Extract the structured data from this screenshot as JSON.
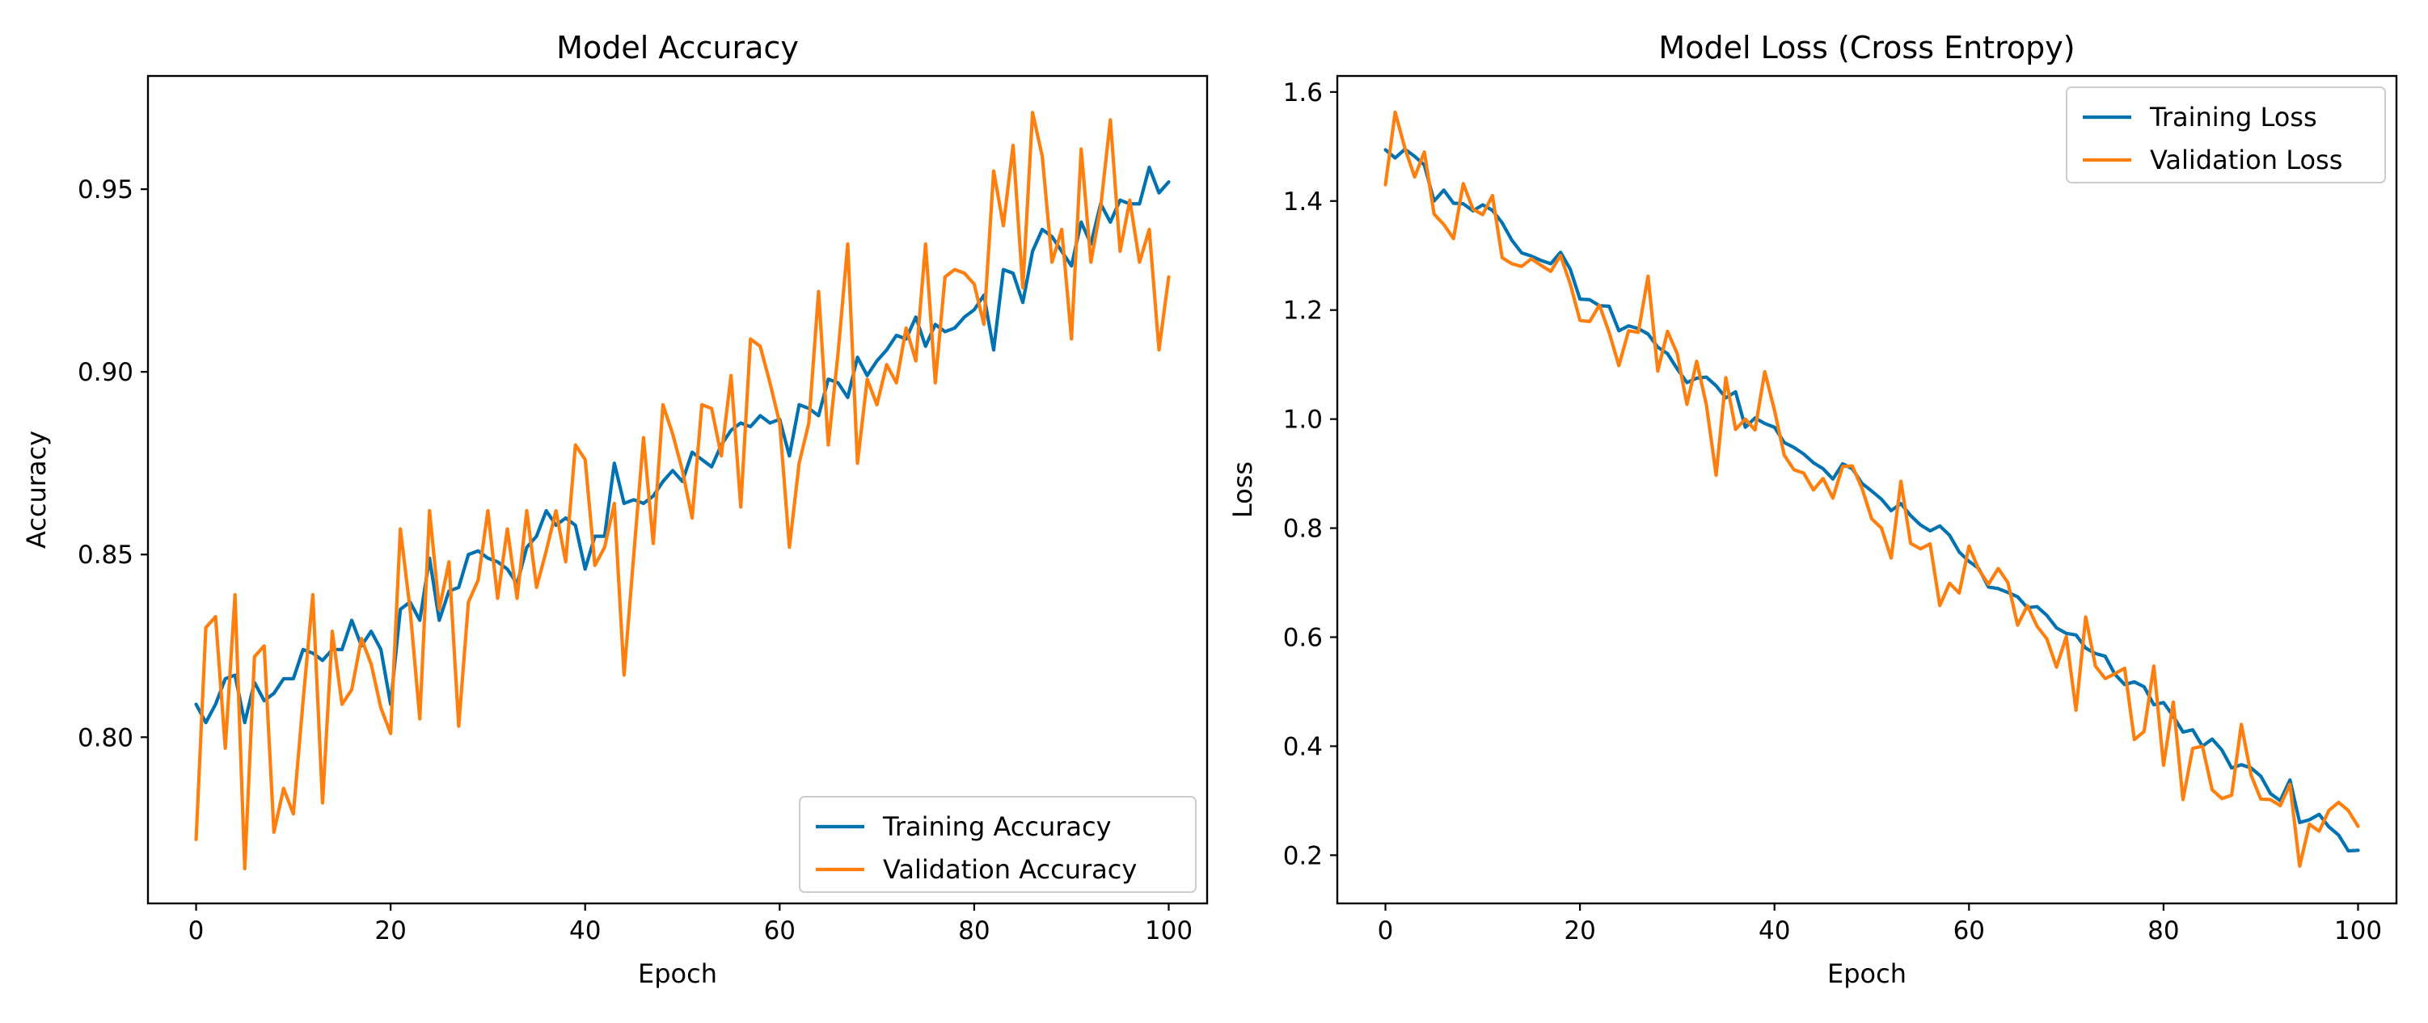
{
  "colors": {
    "training": "#0072b2",
    "validation": "#ff7f0e"
  },
  "chart_data": [
    {
      "type": "line",
      "title": "Model Accuracy",
      "xlabel": "Epoch",
      "ylabel": "Accuracy",
      "xlim": [
        -4.95,
        103.95
      ],
      "ylim": [
        0.7545,
        0.981
      ],
      "xticks": [
        0,
        20,
        40,
        60,
        80,
        100
      ],
      "xtick_labels": [
        "0",
        "20",
        "40",
        "60",
        "80",
        "100"
      ],
      "yticks": [
        0.8,
        0.85,
        0.9,
        0.95
      ],
      "ytick_labels": [
        "0.80",
        "0.85",
        "0.90",
        "0.95"
      ],
      "legend_position": "lower-right",
      "series": [
        {
          "name": "Training Accuracy",
          "color": "#0072b2",
          "values": [
            0.809,
            0.804,
            0.809,
            0.816,
            0.817,
            0.804,
            0.815,
            0.81,
            0.812,
            0.816,
            0.816,
            0.824,
            0.823,
            0.821,
            0.824,
            0.824,
            0.832,
            0.825,
            0.829,
            0.824,
            0.809,
            0.835,
            0.837,
            0.832,
            0.849,
            0.832,
            0.84,
            0.841,
            0.85,
            0.851,
            0.849,
            0.848,
            0.846,
            0.842,
            0.852,
            0.855,
            0.862,
            0.858,
            0.86,
            0.858,
            0.846,
            0.855,
            0.855,
            0.875,
            0.864,
            0.865,
            0.864,
            0.866,
            0.87,
            0.873,
            0.87,
            0.878,
            0.876,
            0.874,
            0.88,
            0.884,
            0.886,
            0.885,
            0.888,
            0.886,
            0.887,
            0.877,
            0.891,
            0.89,
            0.888,
            0.898,
            0.897,
            0.893,
            0.904,
            0.899,
            0.903,
            0.906,
            0.91,
            0.909,
            0.915,
            0.907,
            0.913,
            0.911,
            0.912,
            0.915,
            0.917,
            0.921,
            0.906,
            0.928,
            0.927,
            0.919,
            0.933,
            0.939,
            0.937,
            0.933,
            0.929,
            0.941,
            0.935,
            0.946,
            0.941,
            0.947,
            0.946,
            0.946,
            0.956,
            0.949,
            0.952
          ]
        },
        {
          "name": "Validation Accuracy",
          "color": "#ff7f0e",
          "values": [
            0.772,
            0.83,
            0.833,
            0.797,
            0.839,
            0.764,
            0.822,
            0.825,
            0.774,
            0.786,
            0.779,
            0.81,
            0.839,
            0.782,
            0.829,
            0.809,
            0.813,
            0.827,
            0.82,
            0.808,
            0.801,
            0.857,
            0.835,
            0.805,
            0.862,
            0.835,
            0.848,
            0.803,
            0.837,
            0.843,
            0.862,
            0.838,
            0.857,
            0.838,
            0.862,
            0.841,
            0.851,
            0.862,
            0.848,
            0.88,
            0.876,
            0.847,
            0.852,
            0.864,
            0.817,
            0.85,
            0.882,
            0.853,
            0.891,
            0.883,
            0.873,
            0.86,
            0.891,
            0.89,
            0.877,
            0.899,
            0.863,
            0.909,
            0.907,
            0.897,
            0.886,
            0.852,
            0.875,
            0.886,
            0.922,
            0.88,
            0.905,
            0.935,
            0.875,
            0.898,
            0.891,
            0.902,
            0.897,
            0.912,
            0.903,
            0.935,
            0.897,
            0.926,
            0.928,
            0.927,
            0.924,
            0.913,
            0.955,
            0.94,
            0.962,
            0.923,
            0.971,
            0.959,
            0.93,
            0.939,
            0.909,
            0.961,
            0.93,
            0.945,
            0.969,
            0.933,
            0.947,
            0.93,
            0.939,
            0.906,
            0.926
          ]
        }
      ]
    },
    {
      "type": "line",
      "title": "Model Loss (Cross Entropy)",
      "xlabel": "Epoch",
      "ylabel": "Loss",
      "xlim": [
        -4.95,
        103.95
      ],
      "ylim": [
        0.1116,
        1.6294
      ],
      "xticks": [
        0,
        20,
        40,
        60,
        80,
        100
      ],
      "xtick_labels": [
        "0",
        "20",
        "40",
        "60",
        "80",
        "100"
      ],
      "yticks": [
        0.2,
        0.4,
        0.6,
        0.8,
        1.0,
        1.2,
        1.4,
        1.6
      ],
      "ytick_labels": [
        "0.2",
        "0.4",
        "0.6",
        "0.8",
        "1.0",
        "1.2",
        "1.4",
        "1.6"
      ],
      "legend_position": "top-right",
      "series": [
        {
          "name": "Training Loss",
          "color": "#0072b2",
          "values": [
            1.494,
            1.479,
            1.495,
            1.482,
            1.466,
            1.4,
            1.42,
            1.396,
            1.395,
            1.382,
            1.393,
            1.383,
            1.36,
            1.328,
            1.305,
            1.299,
            1.291,
            1.285,
            1.306,
            1.275,
            1.22,
            1.219,
            1.208,
            1.207,
            1.162,
            1.171,
            1.166,
            1.156,
            1.132,
            1.12,
            1.092,
            1.067,
            1.075,
            1.077,
            1.061,
            1.039,
            1.05,
            0.985,
            1.002,
            0.992,
            0.985,
            0.957,
            0.948,
            0.936,
            0.92,
            0.909,
            0.89,
            0.918,
            0.909,
            0.882,
            0.868,
            0.853,
            0.832,
            0.845,
            0.823,
            0.806,
            0.795,
            0.804,
            0.787,
            0.756,
            0.739,
            0.726,
            0.692,
            0.689,
            0.682,
            0.674,
            0.654,
            0.656,
            0.64,
            0.617,
            0.607,
            0.604,
            0.58,
            0.57,
            0.565,
            0.532,
            0.513,
            0.518,
            0.509,
            0.476,
            0.48,
            0.455,
            0.426,
            0.43,
            0.4,
            0.413,
            0.393,
            0.36,
            0.366,
            0.36,
            0.345,
            0.313,
            0.3,
            0.338,
            0.26,
            0.265,
            0.275,
            0.252,
            0.237,
            0.208,
            0.209
          ]
        },
        {
          "name": "Validation Loss",
          "color": "#ff7f0e",
          "values": [
            1.43,
            1.563,
            1.497,
            1.444,
            1.49,
            1.376,
            1.357,
            1.331,
            1.432,
            1.385,
            1.375,
            1.41,
            1.296,
            1.285,
            1.28,
            1.294,
            1.282,
            1.271,
            1.3,
            1.248,
            1.181,
            1.179,
            1.209,
            1.159,
            1.098,
            1.162,
            1.159,
            1.262,
            1.088,
            1.161,
            1.12,
            1.027,
            1.106,
            1.026,
            0.897,
            1.076,
            0.981,
            1.0,
            0.98,
            1.087,
            1.016,
            0.934,
            0.907,
            0.901,
            0.87,
            0.891,
            0.855,
            0.913,
            0.914,
            0.873,
            0.817,
            0.8,
            0.745,
            0.886,
            0.772,
            0.762,
            0.771,
            0.658,
            0.699,
            0.681,
            0.767,
            0.724,
            0.697,
            0.726,
            0.7,
            0.622,
            0.658,
            0.62,
            0.597,
            0.545,
            0.601,
            0.466,
            0.637,
            0.547,
            0.524,
            0.533,
            0.543,
            0.412,
            0.427,
            0.547,
            0.365,
            0.481,
            0.302,
            0.396,
            0.4,
            0.32,
            0.304,
            0.31,
            0.44,
            0.347,
            0.303,
            0.302,
            0.291,
            0.33,
            0.18,
            0.257,
            0.244,
            0.282,
            0.297,
            0.282,
            0.253
          ]
        }
      ]
    }
  ]
}
